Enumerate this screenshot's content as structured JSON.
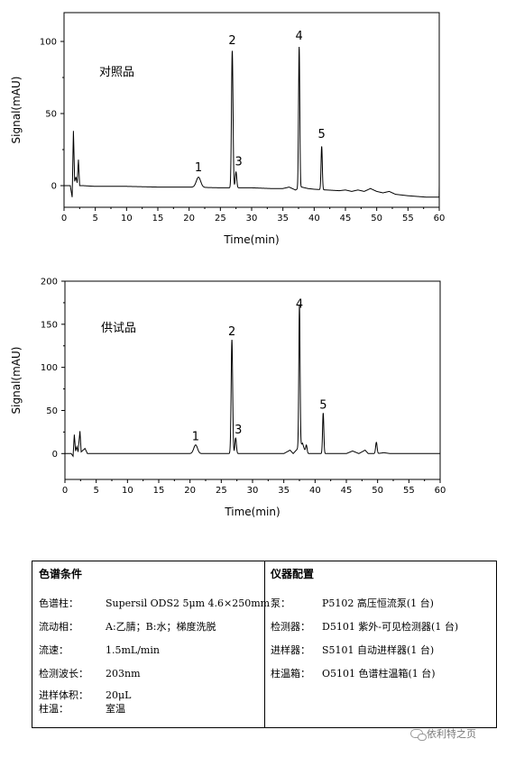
{
  "chart_data": [
    {
      "type": "line",
      "label": "对照品",
      "xlabel": "Time(min)",
      "ylabel": "Signal(mAU)",
      "xlim": [
        0,
        60
      ],
      "ylim": [
        -15,
        120
      ],
      "xticks": [
        0,
        5,
        10,
        15,
        20,
        25,
        30,
        35,
        40,
        45,
        50,
        55,
        60
      ],
      "yticks": [
        0,
        50,
        100
      ],
      "grid": false,
      "baseline": [
        [
          0,
          0
        ],
        [
          0.5,
          0
        ],
        [
          1.0,
          0
        ],
        [
          1.3,
          -8
        ],
        [
          1.5,
          38
        ],
        [
          1.7,
          3
        ],
        [
          1.9,
          6
        ],
        [
          2.1,
          2
        ],
        [
          2.3,
          18
        ],
        [
          2.5,
          0
        ],
        [
          3,
          0
        ],
        [
          5,
          -0.5
        ],
        [
          10,
          -0.5
        ],
        [
          15,
          -1
        ],
        [
          20,
          -1
        ],
        [
          25,
          -1.5
        ],
        [
          30,
          -1.5
        ],
        [
          33,
          -2
        ],
        [
          35,
          -2
        ],
        [
          36,
          -1
        ],
        [
          37,
          -3
        ],
        [
          38,
          -1
        ],
        [
          39,
          -2
        ],
        [
          40,
          -2.5
        ],
        [
          42,
          -3
        ],
        [
          44,
          -3.5
        ],
        [
          45,
          -3
        ],
        [
          46,
          -4
        ],
        [
          47,
          -3
        ],
        [
          48,
          -4
        ],
        [
          49,
          -2
        ],
        [
          50,
          -4
        ],
        [
          51,
          -5
        ],
        [
          52,
          -4
        ],
        [
          53,
          -6
        ],
        [
          55,
          -7
        ],
        [
          58,
          -8
        ],
        [
          60,
          -8
        ]
      ],
      "peaks": [
        {
          "label": "1",
          "x": 21.5,
          "y": 7,
          "w": 0.35
        },
        {
          "label": "2",
          "x": 26.9,
          "y": 95,
          "w": 0.12
        },
        {
          "label": "3",
          "x": 27.5,
          "y": 11,
          "w": 0.12
        },
        {
          "label": "4",
          "x": 37.6,
          "y": 98,
          "w": 0.1
        },
        {
          "label": "5",
          "x": 41.2,
          "y": 30,
          "w": 0.1
        }
      ]
    },
    {
      "type": "line",
      "label": "供试品",
      "xlabel": "Time(min)",
      "ylabel": "Signal(mAU)",
      "xlim": [
        0,
        60
      ],
      "ylim": [
        -30,
        200
      ],
      "xticks": [
        0,
        5,
        10,
        15,
        20,
        25,
        30,
        35,
        40,
        45,
        50,
        55,
        60
      ],
      "yticks": [
        0,
        50,
        100,
        150,
        200
      ],
      "grid": false,
      "baseline": [
        [
          0,
          0
        ],
        [
          1.0,
          0
        ],
        [
          1.3,
          -3
        ],
        [
          1.5,
          22
        ],
        [
          1.7,
          3
        ],
        [
          1.9,
          8
        ],
        [
          2.1,
          2
        ],
        [
          2.4,
          26
        ],
        [
          2.6,
          2
        ],
        [
          3.2,
          6
        ],
        [
          3.6,
          0
        ],
        [
          5,
          0
        ],
        [
          8,
          0
        ],
        [
          10,
          0
        ],
        [
          15,
          0
        ],
        [
          20,
          0
        ],
        [
          25,
          0
        ],
        [
          30,
          0
        ],
        [
          33,
          0
        ],
        [
          35,
          0
        ],
        [
          36,
          4
        ],
        [
          36.5,
          0
        ],
        [
          38,
          12
        ],
        [
          38.5,
          0
        ],
        [
          40,
          0
        ],
        [
          42,
          0
        ],
        [
          45,
          0
        ],
        [
          46,
          3
        ],
        [
          47,
          0
        ],
        [
          48,
          4
        ],
        [
          48.5,
          0
        ],
        [
          50,
          0
        ],
        [
          51,
          1
        ],
        [
          52,
          0
        ],
        [
          55,
          0
        ],
        [
          58,
          0
        ],
        [
          60,
          0
        ]
      ],
      "peaks": [
        {
          "label": "1",
          "x": 20.9,
          "y": 10,
          "w": 0.3
        },
        {
          "label": "2",
          "x": 26.7,
          "y": 132,
          "w": 0.12
        },
        {
          "label": "3",
          "x": 27.3,
          "y": 18,
          "w": 0.12
        },
        {
          "label": "4",
          "x": 37.5,
          "y": 164,
          "w": 0.1
        },
        {
          "label": "5",
          "x": 41.3,
          "y": 47,
          "w": 0.1
        }
      ],
      "small_peaks": [
        {
          "x": 49.8,
          "y": 13,
          "w": 0.12
        },
        {
          "x": 38.6,
          "y": 10,
          "w": 0.12
        }
      ]
    }
  ],
  "table": {
    "left": {
      "heading": "色谱条件",
      "rows": [
        {
          "k": "色谱柱：",
          "v": "Supersil ODS2    5μm 4.6×250mm"
        },
        {
          "k": "流动相：",
          "v": "A:乙腈；B:水；梯度洗脱"
        },
        {
          "k": "流速：",
          "v": "1.5mL/min"
        },
        {
          "k": "检测波长：",
          "v": "203nm"
        },
        {
          "k": "进样体积：",
          "v": "20μL"
        },
        {
          "k": "柱温：",
          "v": "室温"
        }
      ]
    },
    "right": {
      "heading": "仪器配置",
      "rows": [
        {
          "k": "泵：",
          "v": "P5102 高压恒流泵(1 台)"
        },
        {
          "k": "检测器：",
          "v": "D5101 紫外-可见检测器(1 台)"
        },
        {
          "k": "进样器：",
          "v": "S5101 自动进样器(1 台)"
        },
        {
          "k": "柱温箱：",
          "v": "O5101 色谱柱温箱(1 台)"
        }
      ]
    }
  },
  "watermark": "依利特之页"
}
